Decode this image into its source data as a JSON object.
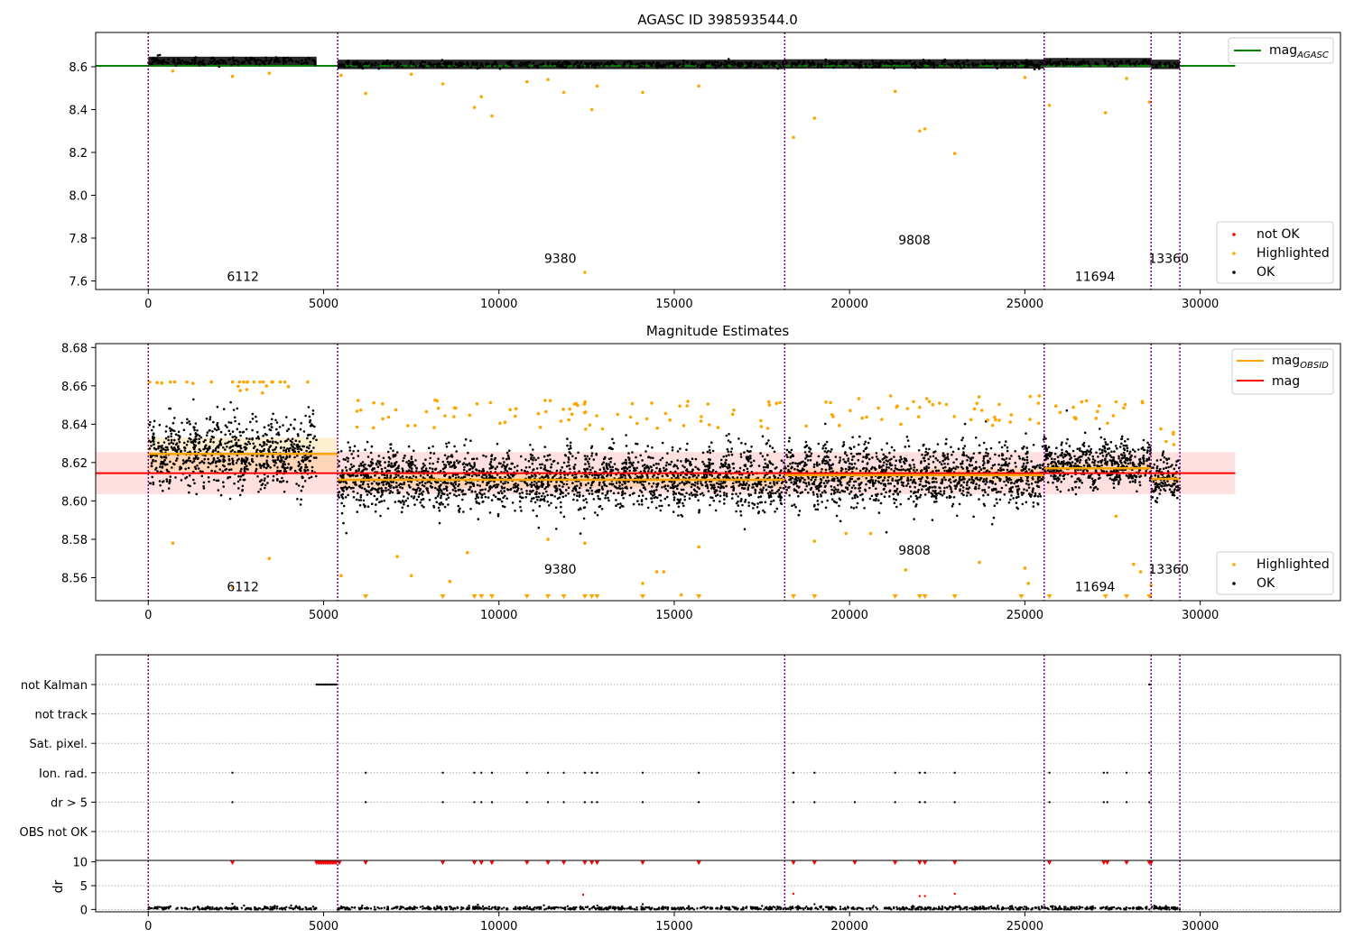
{
  "chart_data": [
    {
      "type": "scatter",
      "title": "AGASC ID 398593544.0",
      "xlabel": "",
      "ylabel": "",
      "xlim": [
        -1500,
        34000
      ],
      "ylim": [
        7.56,
        8.76
      ],
      "xticks": [
        0,
        5000,
        10000,
        15000,
        20000,
        25000,
        30000
      ],
      "yticks": [
        7.6,
        7.8,
        8.0,
        8.2,
        8.4,
        8.6
      ],
      "ytick_labels": [
        "7.6",
        "7.8",
        "8.0",
        "8.2",
        "8.4",
        "8.6"
      ],
      "obs_boundaries": [
        0,
        5400,
        18150,
        25550,
        28600,
        29420
      ],
      "obs_labels": [
        {
          "text": "6112",
          "x": 2700,
          "y": 7.6
        },
        {
          "text": "9380",
          "x": 11750,
          "y": 7.685
        },
        {
          "text": "9808",
          "x": 21850,
          "y": 7.77
        },
        {
          "text": "11694",
          "x": 27000,
          "y": 7.6
        },
        {
          "text": "13360",
          "x": 29100,
          "y": 7.685
        }
      ],
      "lines": [
        {
          "name": "mag_AGASC",
          "y": 8.604,
          "x": [
            -1500,
            31000
          ],
          "color": "#008000"
        }
      ],
      "band_segments": [
        {
          "x": [
            0,
            4800
          ],
          "center": 8.625,
          "spread": 0.012
        },
        {
          "x": [
            5400,
            18150
          ],
          "center": 8.611,
          "spread": 0.01
        },
        {
          "x": [
            18150,
            25550
          ],
          "center": 8.613,
          "spread": 0.01
        },
        {
          "x": [
            25550,
            28600
          ],
          "center": 8.619,
          "spread": 0.008
        },
        {
          "x": [
            28600,
            29420
          ],
          "center": 8.611,
          "spread": 0.007
        }
      ],
      "highlighted_points": [
        {
          "x": 700,
          "y": 8.58
        },
        {
          "x": 2400,
          "y": 8.555
        },
        {
          "x": 3450,
          "y": 8.57
        },
        {
          "x": 5500,
          "y": 8.56
        },
        {
          "x": 6200,
          "y": 8.475
        },
        {
          "x": 7500,
          "y": 8.565
        },
        {
          "x": 8400,
          "y": 8.52
        },
        {
          "x": 9300,
          "y": 8.41
        },
        {
          "x": 9500,
          "y": 8.46
        },
        {
          "x": 9800,
          "y": 8.37
        },
        {
          "x": 10800,
          "y": 8.53
        },
        {
          "x": 11400,
          "y": 8.54
        },
        {
          "x": 11850,
          "y": 8.48
        },
        {
          "x": 12450,
          "y": 7.64
        },
        {
          "x": 12650,
          "y": 8.4
        },
        {
          "x": 12800,
          "y": 8.51
        },
        {
          "x": 14100,
          "y": 8.48
        },
        {
          "x": 15700,
          "y": 8.51
        },
        {
          "x": 18400,
          "y": 8.27
        },
        {
          "x": 19000,
          "y": 8.36
        },
        {
          "x": 21300,
          "y": 8.485
        },
        {
          "x": 22000,
          "y": 8.3
        },
        {
          "x": 22150,
          "y": 8.31
        },
        {
          "x": 23000,
          "y": 8.195
        },
        {
          "x": 25000,
          "y": 8.55
        },
        {
          "x": 25700,
          "y": 8.42
        },
        {
          "x": 27300,
          "y": 8.385
        },
        {
          "x": 27900,
          "y": 8.545
        },
        {
          "x": 28550,
          "y": 8.435
        }
      ],
      "legend_mag": {
        "main": "mag",
        "sub": "AGASC",
        "position": "upper right"
      },
      "legend_points": [
        "not OK",
        "Highlighted",
        "OK"
      ],
      "legend_points_position": "lower right"
    },
    {
      "type": "scatter",
      "title": "Magnitude Estimates",
      "xlabel": "",
      "ylabel": "",
      "xlim": [
        -1500,
        34000
      ],
      "ylim": [
        8.548,
        8.682
      ],
      "xticks": [
        0,
        5000,
        10000,
        15000,
        20000,
        25000,
        30000
      ],
      "yticks": [
        8.56,
        8.58,
        8.6,
        8.62,
        8.64,
        8.66,
        8.68
      ],
      "ytick_labels": [
        "8.56",
        "8.58",
        "8.60",
        "8.62",
        "8.64",
        "8.66",
        "8.68"
      ],
      "obs_boundaries": [
        0,
        5400,
        18150,
        25550,
        28600,
        29420
      ],
      "obs_labels": [
        {
          "text": "6112",
          "x": 2700,
          "y": 8.553
        },
        {
          "text": "9380",
          "x": 11750,
          "y": 8.562
        },
        {
          "text": "9808",
          "x": 21850,
          "y": 8.572
        },
        {
          "text": "11694",
          "x": 27000,
          "y": 8.553
        },
        {
          "text": "13360",
          "x": 29100,
          "y": 8.562
        }
      ],
      "mag": 8.6145,
      "mag_band": [
        8.6035,
        8.6255
      ],
      "mag_band_x": [
        -1500,
        31000
      ],
      "mag_obsid_segments": [
        {
          "x": [
            0,
            5400
          ],
          "y": 8.6245,
          "band": [
            8.6155,
            8.633
          ]
        },
        {
          "x": [
            5400,
            18150
          ],
          "y": 8.611,
          "band": [
            8.607,
            8.615
          ]
        },
        {
          "x": [
            18150,
            25550
          ],
          "y": 8.6135,
          "band": [
            8.61,
            8.617
          ]
        },
        {
          "x": [
            25550,
            28600
          ],
          "y": 8.617,
          "band": [
            8.614,
            8.62
          ]
        },
        {
          "x": [
            28600,
            29420
          ],
          "y": 8.6115,
          "band": [
            8.609,
            8.614
          ]
        }
      ],
      "scatter_segments": [
        {
          "x": [
            0,
            4800
          ],
          "center": 8.625,
          "spread": 0.012
        },
        {
          "x": [
            5400,
            18150
          ],
          "center": 8.611,
          "spread": 0.01
        },
        {
          "x": [
            18150,
            25550
          ],
          "center": 8.613,
          "spread": 0.01
        },
        {
          "x": [
            25550,
            28600
          ],
          "center": 8.619,
          "spread": 0.008
        },
        {
          "x": [
            28600,
            29420
          ],
          "center": 8.611,
          "spread": 0.007
        }
      ],
      "highlighted_points": [
        {
          "x": 700,
          "y": 8.578
        },
        {
          "x": 2400,
          "y": 8.555
        },
        {
          "x": 3450,
          "y": 8.57
        },
        {
          "x": 5500,
          "y": 8.561
        },
        {
          "x": 7100,
          "y": 8.571
        },
        {
          "x": 7500,
          "y": 8.561
        },
        {
          "x": 8600,
          "y": 8.558
        },
        {
          "x": 9100,
          "y": 8.573
        },
        {
          "x": 11400,
          "y": 8.58
        },
        {
          "x": 12450,
          "y": 8.578
        },
        {
          "x": 14100,
          "y": 8.557
        },
        {
          "x": 14500,
          "y": 8.563
        },
        {
          "x": 14700,
          "y": 8.563
        },
        {
          "x": 15200,
          "y": 8.551
        },
        {
          "x": 15700,
          "y": 8.576
        },
        {
          "x": 19000,
          "y": 8.579
        },
        {
          "x": 19900,
          "y": 8.583
        },
        {
          "x": 20600,
          "y": 8.583
        },
        {
          "x": 21600,
          "y": 8.564
        },
        {
          "x": 23700,
          "y": 8.568
        },
        {
          "x": 25000,
          "y": 8.565
        },
        {
          "x": 25100,
          "y": 8.557
        },
        {
          "x": 27600,
          "y": 8.592
        },
        {
          "x": 28100,
          "y": 8.567
        },
        {
          "x": 28300,
          "y": 8.563
        },
        {
          "x": 28600,
          "y": 8.556
        }
      ],
      "clipped_markers_x": [
        6200,
        8400,
        9300,
        9500,
        9800,
        10800,
        11400,
        11850,
        12450,
        12650,
        12800,
        14100,
        15700,
        18400,
        19000,
        21300,
        22000,
        22150,
        23000,
        24900,
        25700,
        27300,
        27900,
        28550
      ],
      "legend_mag": [
        {
          "main": "mag",
          "sub": "OBSID",
          "color": "#ffa500"
        },
        {
          "main": "mag",
          "sub": "",
          "color": "#ff0000"
        }
      ],
      "legend_mag_position": "upper right",
      "legend_points": [
        "Highlighted",
        "OK"
      ],
      "legend_points_position": "lower right"
    },
    {
      "type": "scatter",
      "title": "",
      "xlabel": "",
      "ylabel": "dr",
      "xlim": [
        -1500,
        34000
      ],
      "xticks": [
        0,
        5000,
        10000,
        15000,
        20000,
        25000,
        30000
      ],
      "obs_boundaries": [
        0,
        5400,
        18150,
        25550,
        28600,
        29420
      ],
      "flag_rows": [
        "not Kalman",
        "not track",
        "Sat. pixel.",
        "Ion. rad.",
        "dr > 5",
        "OBS not OK"
      ],
      "flag_points": {
        "not Kalman": [
          4800,
          4850,
          4900,
          4950,
          5000,
          5050,
          5100,
          5150,
          5200,
          5250,
          5300,
          5350,
          28550
        ],
        "not track": [],
        "Sat. pixel.": [],
        "Ion. rad.": [
          2400,
          6200,
          8400,
          9300,
          9500,
          9800,
          10800,
          11400,
          11850,
          12450,
          12650,
          12800,
          14100,
          15700,
          18400,
          19000,
          21300,
          22000,
          22150,
          23000,
          25700,
          27250,
          27350,
          27900,
          28550
        ],
        "dr > 5": [
          2400,
          6200,
          8400,
          9300,
          9500,
          9800,
          10800,
          11400,
          11850,
          12450,
          12650,
          12800,
          14100,
          15700,
          18400,
          19000,
          20150,
          21300,
          22000,
          22150,
          23000,
          25700,
          27250,
          27350,
          27900,
          28550
        ],
        "OBS not OK": []
      },
      "dr_ylim": [
        -0.5,
        10.3
      ],
      "dr_yticks": [
        0,
        5,
        10
      ],
      "dr_clipped_x": [
        2400,
        4800,
        4850,
        4900,
        4950,
        5000,
        5050,
        5100,
        5150,
        5200,
        5250,
        5300,
        5350,
        5450,
        6200,
        8400,
        9300,
        9500,
        9800,
        10800,
        11400,
        11850,
        12450,
        12650,
        12800,
        14100,
        15700,
        18400,
        19000,
        20150,
        21300,
        22000,
        22150,
        23000,
        25700,
        27250,
        27350,
        27900,
        28550,
        28600
      ],
      "dr_outliers": [
        {
          "x": 12400,
          "y": 3.1
        },
        {
          "x": 18400,
          "y": 3.3
        },
        {
          "x": 22000,
          "y": 2.8
        },
        {
          "x": 22150,
          "y": 2.8
        },
        {
          "x": 23000,
          "y": 3.3
        },
        {
          "x": 2400,
          "y": 1.2
        },
        {
          "x": 9400,
          "y": 1.0
        },
        {
          "x": 14100,
          "y": 1.1
        },
        {
          "x": 19000,
          "y": 1.1
        }
      ],
      "dr_baseline": {
        "x": [
          0,
          29420
        ],
        "center": 0.25,
        "spread": 0.2
      }
    }
  ],
  "colors": {
    "ok": "#000000",
    "highlighted": "#ffa500",
    "not_ok": "#ff0000",
    "boundary": "#800080",
    "mag_agasc": "#008000",
    "mag": "#ff0000",
    "mag_obsid": "#ffa500",
    "grid": "#b0b0b0",
    "frame": "#000000"
  }
}
